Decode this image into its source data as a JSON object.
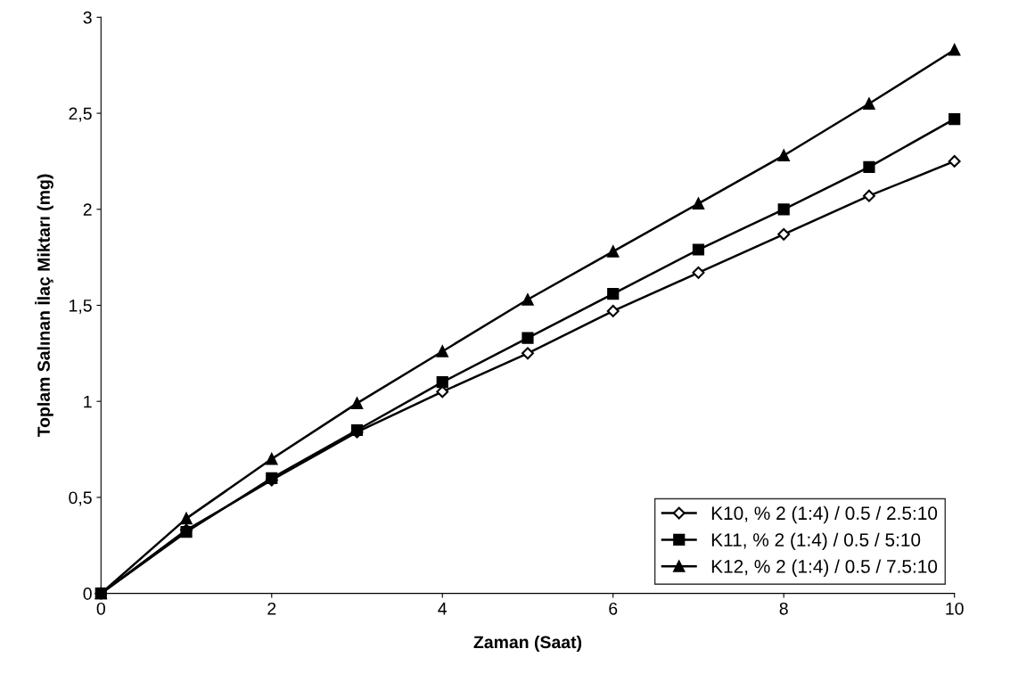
{
  "chart_data": {
    "type": "line",
    "xlabel": "Zaman (Saat)",
    "ylabel": "Toplam Salınan İlaç Miktarı (mg)",
    "x": [
      0,
      1,
      2,
      3,
      4,
      5,
      6,
      7,
      8,
      9,
      10
    ],
    "series": [
      {
        "name": "K10, % 2 (1:4) / 0.5 / 2.5:10",
        "color": "#000000",
        "marker": "diamond",
        "values": [
          0,
          0.33,
          0.59,
          0.84,
          1.05,
          1.25,
          1.47,
          1.67,
          1.87,
          2.07,
          2.25
        ]
      },
      {
        "name": "K11, % 2 (1:4) / 0.5 / 5:10",
        "color": "#000000",
        "marker": "square",
        "values": [
          0,
          0.32,
          0.6,
          0.85,
          1.1,
          1.33,
          1.56,
          1.79,
          2.0,
          2.22,
          2.47
        ]
      },
      {
        "name": "K12, % 2 (1:4) / 0.5 / 7.5:10",
        "color": "#000000",
        "marker": "triangle",
        "values": [
          0,
          0.39,
          0.7,
          0.99,
          1.26,
          1.53,
          1.78,
          2.03,
          2.28,
          2.55,
          2.83
        ]
      }
    ],
    "xlim": [
      0,
      10
    ],
    "xticks": [
      0,
      2,
      4,
      6,
      8,
      10
    ],
    "ylim": [
      0,
      3
    ],
    "yticks": [
      0,
      {
        "value": 0.5,
        "label": "0,5"
      },
      1,
      {
        "value": 1.5,
        "label": "1,5"
      },
      2,
      {
        "value": 2.5,
        "label": "2,5"
      },
      3
    ],
    "grid": false,
    "legend": "bottom right",
    "line_style": "solid"
  }
}
